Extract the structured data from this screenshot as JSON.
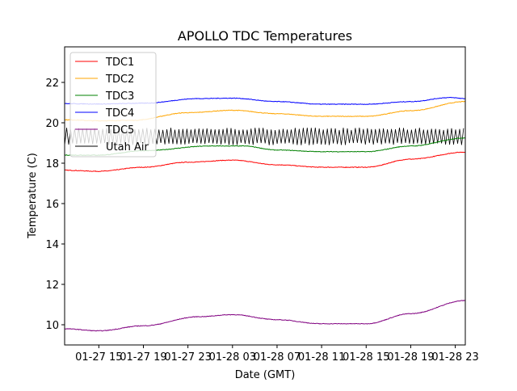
{
  "chart_data": {
    "type": "line",
    "title": "APOLLO TDC Temperatures",
    "xlabel": "Date (GMT)",
    "ylabel": "Temperature (C)",
    "x_units": "hours since 01-27 00:00 GMT",
    "xlim": [
      11.93,
      47.9
    ],
    "ylim": [
      9.0,
      23.76
    ],
    "x_ticks": [
      {
        "value": 15,
        "label": "01-27 15"
      },
      {
        "value": 19,
        "label": "01-27 19"
      },
      {
        "value": 23,
        "label": "01-27 23"
      },
      {
        "value": 27,
        "label": "01-28 03"
      },
      {
        "value": 31,
        "label": "01-28 07"
      },
      {
        "value": 35,
        "label": "01-28 11"
      },
      {
        "value": 39,
        "label": "01-28 15"
      },
      {
        "value": 43,
        "label": "01-28 19"
      },
      {
        "value": 47,
        "label": "01-28 23"
      }
    ],
    "y_ticks": [
      {
        "value": 10,
        "label": "10"
      },
      {
        "value": 12,
        "label": "12"
      },
      {
        "value": 14,
        "label": "14"
      },
      {
        "value": 16,
        "label": "16"
      },
      {
        "value": 18,
        "label": "18"
      },
      {
        "value": 20,
        "label": "20"
      },
      {
        "value": 22,
        "label": "22"
      }
    ],
    "grid": false,
    "legend_position": "top-left",
    "series": [
      {
        "name": "TDC1",
        "color": "#ff0000",
        "x": [
          11.93,
          15,
          19,
          23,
          27,
          31,
          35,
          39,
          43,
          47.9
        ],
        "y": [
          17.65,
          17.6,
          17.8,
          18.05,
          18.15,
          17.92,
          17.8,
          17.8,
          18.2,
          18.55
        ]
      },
      {
        "name": "TDC2",
        "color": "#ffa500",
        "x": [
          11.93,
          15,
          18,
          23,
          27,
          31,
          35,
          39,
          43,
          47.9
        ],
        "y": [
          20.15,
          20.1,
          20.12,
          20.5,
          20.62,
          20.45,
          20.32,
          20.32,
          20.6,
          21.05
        ]
      },
      {
        "name": "TDC3",
        "color": "#008000",
        "x": [
          11.93,
          15,
          19,
          25,
          28,
          31,
          35,
          39,
          43,
          47.9
        ],
        "y": [
          18.4,
          18.4,
          18.62,
          18.85,
          18.85,
          18.65,
          18.57,
          18.57,
          18.85,
          19.25
        ]
      },
      {
        "name": "TDC4",
        "color": "#0000ff",
        "x": [
          11.93,
          15,
          19,
          24,
          27,
          31,
          35,
          39,
          43,
          46.5,
          47.9
        ],
        "y": [
          20.95,
          20.93,
          20.97,
          21.2,
          21.22,
          21.05,
          20.92,
          20.92,
          21.05,
          21.25,
          21.2
        ]
      },
      {
        "name": "TDC5",
        "color": "#800080",
        "x": [
          11.93,
          15,
          19,
          24,
          27,
          31,
          35,
          39,
          43,
          47.9
        ],
        "y": [
          9.8,
          9.7,
          9.95,
          10.4,
          10.5,
          10.25,
          10.05,
          10.05,
          10.55,
          11.2
        ]
      },
      {
        "name": "Utah Air",
        "color": "#000000",
        "oscillating": true,
        "x_start": 11.93,
        "x_end": 47.9,
        "period_hours": 0.36,
        "low": 18.95,
        "high": 19.7
      }
    ]
  }
}
